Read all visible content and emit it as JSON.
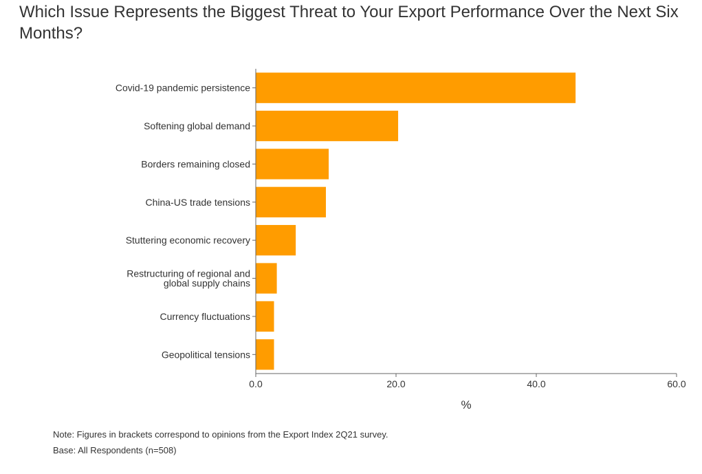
{
  "chart_data": {
    "type": "bar",
    "orientation": "horizontal",
    "title": "Which Issue Represents the Biggest Threat to Your Export Performance Over the Next Six Months?",
    "xlabel": "%",
    "ylabel": "",
    "xlim": [
      0,
      60
    ],
    "xticks": [
      "0.0",
      "20.0",
      "40.0",
      "60.0"
    ],
    "categories": [
      "Covid-19 pandemic persistence",
      "Softening global demand",
      "Borders remaining closed",
      "China-US trade tensions",
      "Stuttering economic recovery",
      "Restructuring of regional and global supply chains",
      "Currency fluctuations",
      "Geopolitical tensions"
    ],
    "values": [
      45.6,
      20.3,
      10.4,
      10.0,
      5.7,
      3.0,
      2.6,
      2.6
    ],
    "bar_color": "#ff9c00",
    "grid": false,
    "legend": "none"
  },
  "notes": {
    "note": "Note: Figures in brackets correspond to opinions from the Export Index 2Q21 survey.",
    "base": "Base: All Respondents (n=508)"
  }
}
